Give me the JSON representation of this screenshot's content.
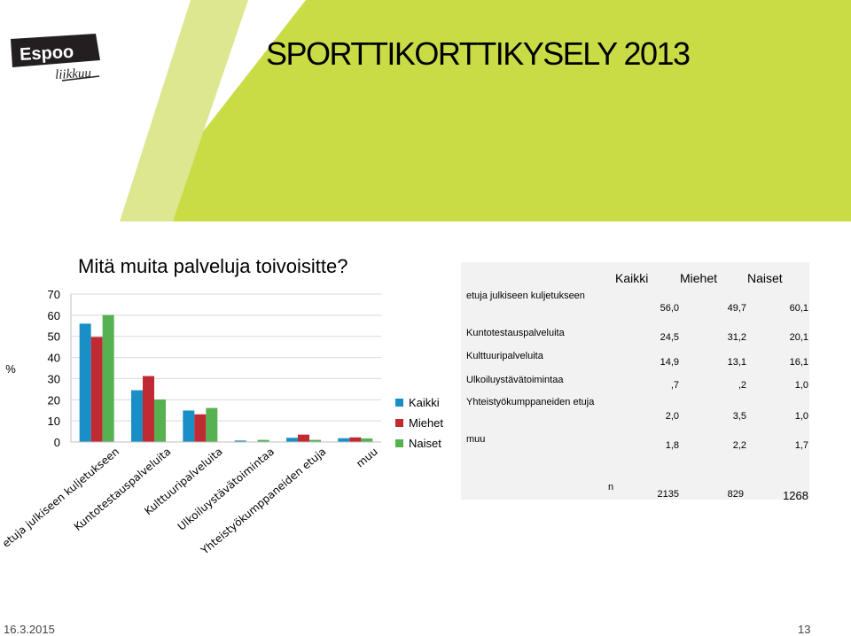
{
  "slide": {
    "title": "SPORTTIKORTTIKYSELY 2013",
    "logo": {
      "line1": "Espoo",
      "line2": "liikkuu"
    },
    "date": "16.3.2015",
    "page_number": "13",
    "colors": {
      "lime": "#c9dc46",
      "light_lime": "#dde78f",
      "dark": "#231f20"
    }
  },
  "chart_data": {
    "type": "bar",
    "title": "Mitä muita palveluja toivoisitte?",
    "ylabel": "%",
    "ylim": [
      0,
      70
    ],
    "yticks": [
      0,
      10,
      20,
      30,
      40,
      50,
      60,
      70
    ],
    "categories": [
      "etuja julkiseen kuljetukseen",
      "Kuntotestauspalveluita",
      "Kulttuuripalveluita",
      "Ulkoiluystävätoimintaa",
      "Yhteistyökumppaneiden etuja",
      "muu"
    ],
    "series": [
      {
        "name": "Kaikki",
        "color": "#1a8fc7",
        "values": [
          56.0,
          24.5,
          14.9,
          0.7,
          2.0,
          1.8
        ]
      },
      {
        "name": "Miehet",
        "color": "#bf2a33",
        "values": [
          49.7,
          31.2,
          13.1,
          0.2,
          3.5,
          2.2
        ]
      },
      {
        "name": "Naiset",
        "color": "#56b150",
        "values": [
          60.1,
          20.1,
          16.1,
          1.0,
          1.0,
          1.7
        ]
      }
    ],
    "grid": true,
    "legend": "right"
  },
  "table": {
    "headers": [
      "Kaikki",
      "Miehet",
      "Naiset"
    ],
    "rows": [
      {
        "label": "etuja julkiseen kuljetukseen",
        "values": [
          "56,0",
          "49,7",
          "60,1"
        ]
      },
      {
        "label": "Kuntotestauspalveluita",
        "values": [
          "24,5",
          "31,2",
          "20,1"
        ]
      },
      {
        "label": "Kulttuuripalveluita",
        "values": [
          "14,9",
          "13,1",
          "16,1"
        ]
      },
      {
        "label": "Ulkoiluystävätoimintaa",
        "values": [
          ",7",
          ",2",
          "1,0"
        ]
      },
      {
        "label": "Yhteistyökumppaneiden etuja",
        "values": [
          "2,0",
          "3,5",
          "1,0"
        ]
      },
      {
        "label": "muu",
        "values": [
          "1,8",
          "2,2",
          "1,7"
        ]
      }
    ],
    "n_label": "n",
    "n_values": [
      "2135",
      "829",
      "1268"
    ]
  }
}
